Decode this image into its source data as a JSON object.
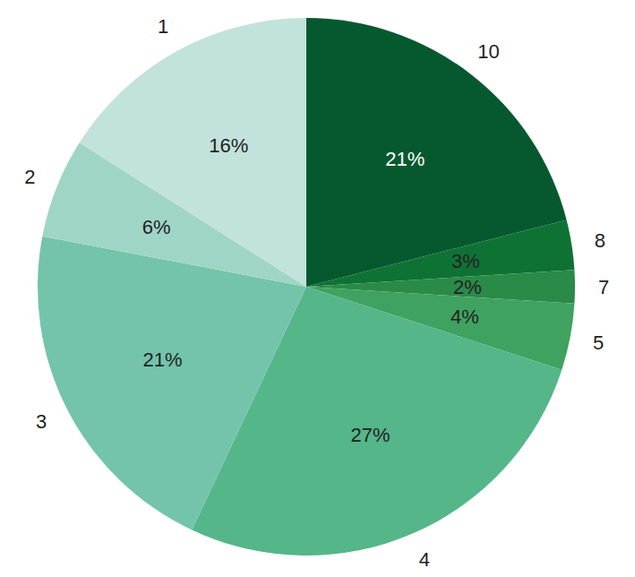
{
  "chart_data": {
    "type": "pie",
    "categories": [
      "10",
      "8",
      "7",
      "5",
      "4",
      "3",
      "2",
      "1"
    ],
    "values": [
      21,
      3,
      2,
      4,
      27,
      21,
      6,
      16
    ],
    "value_labels": [
      "21%",
      "3%",
      "2%",
      "4%",
      "27%",
      "21%",
      "6%",
      "16%"
    ],
    "colors": [
      "#06592f",
      "#0f7235",
      "#2a8a48",
      "#3fa260",
      "#55b68a",
      "#73c4ab",
      "#9fd5c7",
      "#c2e2dc"
    ],
    "data_labels": true
  }
}
